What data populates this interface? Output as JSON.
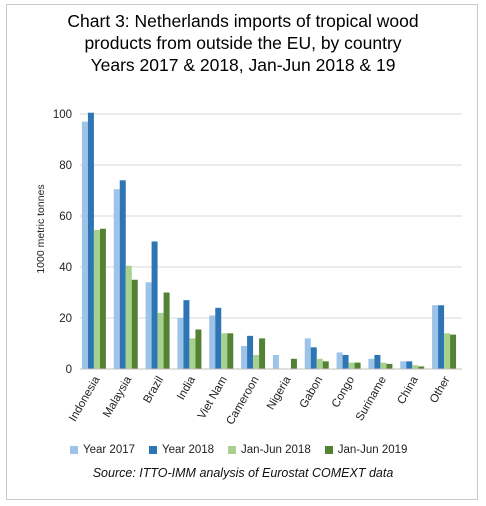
{
  "title": {
    "line1": "Chart 3: Netherlands imports of tropical wood",
    "line2": "products from outside the EU, by country",
    "line3": "Years 2017 & 2018, Jan-Jun 2018 & 19"
  },
  "source": "Source: ITTO-IMM analysis of Eurostat COMEXT data",
  "chart_data": {
    "type": "bar",
    "ylabel": "1000 metric tonnes",
    "xlabel": "",
    "ylim": [
      0,
      100
    ],
    "yticks": [
      0,
      20,
      40,
      60,
      80,
      100
    ],
    "grid": true,
    "legend_position": "bottom",
    "categories": [
      "Indonesia",
      "Malaysia",
      "Brazil",
      "India",
      "Viet Nam",
      "Cameroon",
      "Nigeria",
      "Gabon",
      "Congo",
      "Suriname",
      "China",
      "Other"
    ],
    "series": [
      {
        "name": "Year 2017",
        "color": "#9dc3e6",
        "values": [
          97,
          70.5,
          34,
          20,
          21,
          9,
          5.5,
          12,
          6.5,
          4,
          3,
          25
        ]
      },
      {
        "name": "Year 2018",
        "color": "#2e75b6",
        "values": [
          100.5,
          74,
          50,
          27,
          24,
          13,
          0,
          8.5,
          5.5,
          5.5,
          3,
          25
        ]
      },
      {
        "name": "Jan-Jun 2018",
        "color": "#a9d18e",
        "values": [
          54.5,
          40.5,
          22,
          12,
          14,
          5.5,
          0,
          4,
          2.5,
          2.5,
          1.5,
          14
        ]
      },
      {
        "name": "Jan-Jun 2019",
        "color": "#548235",
        "values": [
          55,
          35,
          30,
          15.5,
          14,
          12,
          4,
          3,
          2.5,
          2,
          1,
          13.5
        ]
      }
    ]
  }
}
